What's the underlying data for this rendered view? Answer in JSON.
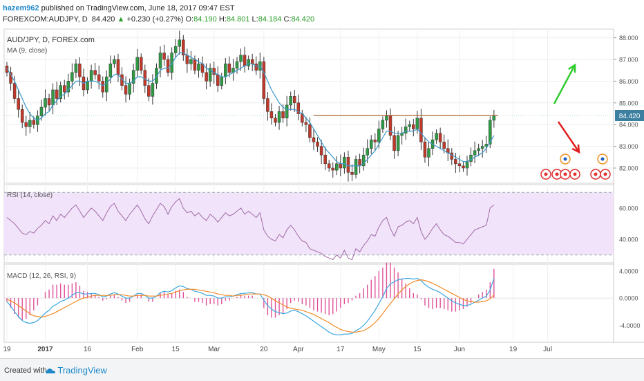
{
  "header": {
    "username": "hazem962",
    "published": "published on TradingView.com, June 18, 2017 09:47 EST",
    "symbol": "FOREXCOM:AUDJPY, D",
    "last": "84.420",
    "change_arrow": "▲",
    "change": "+0.230 (+0.27%)",
    "o_label": "O:",
    "o": "84.190",
    "h_label": "H:",
    "h": "84.801",
    "l_label": "L:",
    "l": "84.184",
    "c_label": "C:",
    "c": "84.420"
  },
  "footer": {
    "created_with": "Created with",
    "brand": "TradingView"
  },
  "colors": {
    "up": "#2e9b44",
    "down": "#c0392b",
    "ma": "#3a98c9",
    "rsi": "#a06ba6",
    "rsi_band": "#f1e3fa",
    "macd_line": "#3aa7e0",
    "signal_line": "#f08a24",
    "hist": "#e0509a",
    "resistance": "#b3581e",
    "arrow_up": "#2ecc2e",
    "arrow_down": "#e02020",
    "price_tag": "#3c7fa0"
  },
  "chart_data": {
    "type": "candlestick",
    "title": "AUD/JPY, D, FOREX.com",
    "ma_label": "MA (9, close)",
    "rsi_label": "RSI (14, close)",
    "macd_label": "MACD (12, 26, RSI, 9)",
    "price_axis": {
      "ylim": [
        81.3,
        88.4
      ],
      "ticks": [
        "88.000",
        "87.000",
        "86.000",
        "85.000",
        "84.000",
        "83.000",
        "82.000"
      ]
    },
    "rsi_axis": {
      "ylim": [
        25,
        75
      ],
      "ticks": [
        "60.000",
        "40.000"
      ],
      "band": [
        30,
        70
      ]
    },
    "macd_axis": {
      "ylim": [
        -6.5,
        5
      ],
      "ticks": [
        "4.0000",
        "0.0000",
        "-4.0000"
      ]
    },
    "x_ticks": [
      {
        "label": "19",
        "day": 0
      },
      {
        "label": "2017",
        "day": 10
      },
      {
        "label": "16",
        "day": 21
      },
      {
        "label": "Feb",
        "day": 34
      },
      {
        "label": "15",
        "day": 44
      },
      {
        "label": "Mar",
        "day": 54
      },
      {
        "label": "20",
        "day": 67
      },
      {
        "label": "Apr",
        "day": 76
      },
      {
        "label": "17",
        "day": 87
      },
      {
        "label": "May",
        "day": 97
      },
      {
        "label": "15",
        "day": 107
      },
      {
        "label": "Jun",
        "day": 118
      },
      {
        "label": "19",
        "day": 132
      },
      {
        "label": "Jul",
        "day": 141
      }
    ],
    "closes": [
      86.4,
      85.9,
      85.2,
      84.7,
      84.1,
      83.9,
      84.2,
      84.0,
      84.4,
      84.8,
      85.2,
      84.9,
      85.6,
      85.2,
      85.8,
      85.5,
      86.0,
      86.4,
      86.8,
      86.2,
      85.6,
      86.0,
      86.5,
      86.3,
      86.0,
      85.5,
      86.2,
      86.8,
      87.0,
      86.3,
      85.8,
      85.4,
      85.9,
      86.5,
      87.1,
      86.5,
      85.8,
      85.3,
      85.9,
      86.6,
      87.3,
      87.0,
      86.4,
      87.3,
      87.6,
      87.9,
      87.2,
      86.8,
      87.0,
      86.5,
      86.8,
      86.4,
      86.0,
      86.6,
      86.3,
      85.8,
      86.2,
      86.8,
      86.4,
      86.6,
      86.9,
      87.2,
      86.7,
      87.0,
      86.8,
      86.5,
      86.9,
      85.2,
      84.6,
      84.3,
      84.1,
      84.6,
      84.3,
      84.9,
      85.3,
      85.0,
      84.5,
      84.1,
      84.0,
      83.4,
      83.2,
      83.0,
      82.6,
      82.2,
      82.0,
      81.9,
      82.2,
      82.0,
      82.5,
      81.8,
      81.7,
      82.4,
      82.1,
      82.6,
      82.9,
      83.3,
      83.2,
      83.8,
      84.2,
      84.4,
      83.5,
      82.8,
      83.5,
      83.6,
      83.9,
      84.0,
      83.8,
      84.3,
      83.2,
      82.5,
      82.9,
      83.3,
      83.6,
      83.2,
      82.9,
      82.7,
      82.4,
      82.2,
      82.1,
      82.0,
      82.3,
      82.6,
      82.8,
      82.9,
      83.0,
      83.1,
      84.2,
      84.42
    ],
    "ma9": [
      86.6,
      86.3,
      86.0,
      85.6,
      85.2,
      84.8,
      84.5,
      84.3,
      84.2,
      84.3,
      84.5,
      84.6,
      84.9,
      85.1,
      85.3,
      85.4,
      85.6,
      85.8,
      86.0,
      86.0,
      85.9,
      86.0,
      86.0,
      86.0,
      85.9,
      85.8,
      85.9,
      86.1,
      86.3,
      86.3,
      86.1,
      85.9,
      85.9,
      86.0,
      86.2,
      86.2,
      86.1,
      86.0,
      86.0,
      86.2,
      86.5,
      86.6,
      86.6,
      86.8,
      87.1,
      87.3,
      87.3,
      87.2,
      87.1,
      87.0,
      86.9,
      86.8,
      86.6,
      86.5,
      86.4,
      86.3,
      86.2,
      86.2,
      86.3,
      86.4,
      86.5,
      86.6,
      86.7,
      86.8,
      86.8,
      86.7,
      86.7,
      86.4,
      86.0,
      85.6,
      85.3,
      85.0,
      84.8,
      84.7,
      84.7,
      84.7,
      84.6,
      84.5,
      84.3,
      84.1,
      83.8,
      83.5,
      83.2,
      82.9,
      82.7,
      82.5,
      82.3,
      82.2,
      82.2,
      82.1,
      82.1,
      82.1,
      82.1,
      82.2,
      82.4,
      82.6,
      82.8,
      83.1,
      83.4,
      83.7,
      83.7,
      83.6,
      83.6,
      83.6,
      83.7,
      83.7,
      83.7,
      83.8,
      83.6,
      83.4,
      83.2,
      83.1,
      83.0,
      82.9,
      82.8,
      82.7,
      82.6,
      82.5,
      82.4,
      82.3,
      82.3,
      82.4,
      82.5,
      82.6,
      82.7,
      82.9,
      83.2,
      83.5
    ],
    "rsi": [
      54,
      52,
      50,
      47,
      44,
      43,
      45,
      44,
      47,
      49,
      52,
      50,
      55,
      52,
      56,
      54,
      57,
      60,
      62,
      58,
      54,
      57,
      60,
      58,
      55,
      52,
      57,
      61,
      63,
      58,
      55,
      52,
      56,
      59,
      62,
      58,
      53,
      50,
      55,
      59,
      63,
      61,
      56,
      61,
      64,
      66,
      60,
      57,
      58,
      55,
      57,
      54,
      52,
      56,
      54,
      51,
      54,
      57,
      55,
      56,
      58,
      60,
      56,
      58,
      56,
      54,
      57,
      46,
      42,
      40,
      39,
      43,
      41,
      46,
      49,
      46,
      42,
      39,
      38,
      34,
      33,
      32,
      31,
      29,
      28,
      27,
      30,
      28,
      33,
      28,
      27,
      34,
      32,
      36,
      39,
      43,
      42,
      48,
      52,
      54,
      47,
      42,
      48,
      49,
      51,
      52,
      50,
      54,
      45,
      40,
      43,
      47,
      50,
      46,
      43,
      42,
      40,
      38,
      38,
      37,
      40,
      43,
      46,
      47,
      48,
      49,
      60,
      62
    ],
    "macd": [
      -0.5,
      -1.2,
      -2.0,
      -2.7,
      -3.3,
      -3.6,
      -3.7,
      -3.6,
      -3.3,
      -2.8,
      -2.2,
      -1.8,
      -1.2,
      -0.9,
      -0.5,
      -0.3,
      0.0,
      0.4,
      0.8,
      0.8,
      0.6,
      0.6,
      0.7,
      0.7,
      0.5,
      0.2,
      0.3,
      0.6,
      0.8,
      0.6,
      0.3,
      0.0,
      0.0,
      0.3,
      0.7,
      0.7,
      0.4,
      0.0,
      0.0,
      0.3,
      0.8,
      1.0,
      0.9,
      1.1,
      1.5,
      1.8,
      1.7,
      1.4,
      1.3,
      1.0,
      0.9,
      0.7,
      0.4,
      0.4,
      0.3,
      0.0,
      0.0,
      0.2,
      0.2,
      0.3,
      0.5,
      0.7,
      0.7,
      0.8,
      0.8,
      0.6,
      0.6,
      -0.3,
      -1.1,
      -1.6,
      -2.0,
      -2.1,
      -2.3,
      -2.2,
      -1.9,
      -1.8,
      -2.0,
      -2.3,
      -2.6,
      -3.0,
      -3.4,
      -3.8,
      -4.2,
      -4.6,
      -5.0,
      -5.3,
      -5.4,
      -5.4,
      -5.3,
      -5.3,
      -5.2,
      -4.8,
      -4.5,
      -4.0,
      -3.4,
      -2.6,
      -1.8,
      -0.8,
      0.2,
      1.4,
      2.1,
      2.4,
      2.7,
      2.8,
      2.9,
      2.9,
      2.8,
      2.9,
      2.6,
      2.0,
      1.6,
      1.3,
      1.1,
      0.8,
      0.4,
      0.0,
      -0.4,
      -0.7,
      -0.9,
      -1.1,
      -1.1,
      -0.9,
      -0.6,
      -0.3,
      0.0,
      0.3,
      1.2,
      2.9
    ],
    "signal": [
      -0.2,
      -0.4,
      -0.7,
      -1.1,
      -1.5,
      -1.9,
      -2.3,
      -2.6,
      -2.7,
      -2.8,
      -2.7,
      -2.5,
      -2.3,
      -2.0,
      -1.7,
      -1.4,
      -1.1,
      -0.8,
      -0.5,
      -0.2,
      0.0,
      0.1,
      0.3,
      0.4,
      0.4,
      0.4,
      0.4,
      0.4,
      0.5,
      0.5,
      0.5,
      0.4,
      0.3,
      0.3,
      0.4,
      0.4,
      0.4,
      0.3,
      0.3,
      0.3,
      0.4,
      0.5,
      0.6,
      0.7,
      0.9,
      1.1,
      1.2,
      1.3,
      1.3,
      1.3,
      1.2,
      1.1,
      1.0,
      0.9,
      0.8,
      0.6,
      0.5,
      0.4,
      0.4,
      0.3,
      0.4,
      0.4,
      0.5,
      0.6,
      0.6,
      0.6,
      0.6,
      0.5,
      0.3,
      0.0,
      -0.4,
      -0.7,
      -1.0,
      -1.3,
      -1.5,
      -1.6,
      -1.7,
      -1.8,
      -2.0,
      -2.2,
      -2.4,
      -2.7,
      -3.0,
      -3.3,
      -3.6,
      -4.0,
      -4.3,
      -4.6,
      -4.8,
      -4.9,
      -5.0,
      -5.0,
      -4.9,
      -4.8,
      -4.5,
      -4.1,
      -3.6,
      -3.0,
      -2.3,
      -1.5,
      -0.8,
      -0.1,
      0.6,
      1.2,
      1.7,
      2.1,
      2.4,
      2.6,
      2.7,
      2.6,
      2.4,
      2.2,
      1.9,
      1.6,
      1.3,
      1.0,
      0.7,
      0.4,
      0.1,
      -0.2,
      -0.4,
      -0.5,
      -0.6,
      -0.6,
      -0.5,
      -0.4,
      -0.1,
      0.5
    ],
    "resistance": {
      "value": 84.42,
      "from_day": 80,
      "to_day": 127
    },
    "current_price_label": "84.420"
  }
}
